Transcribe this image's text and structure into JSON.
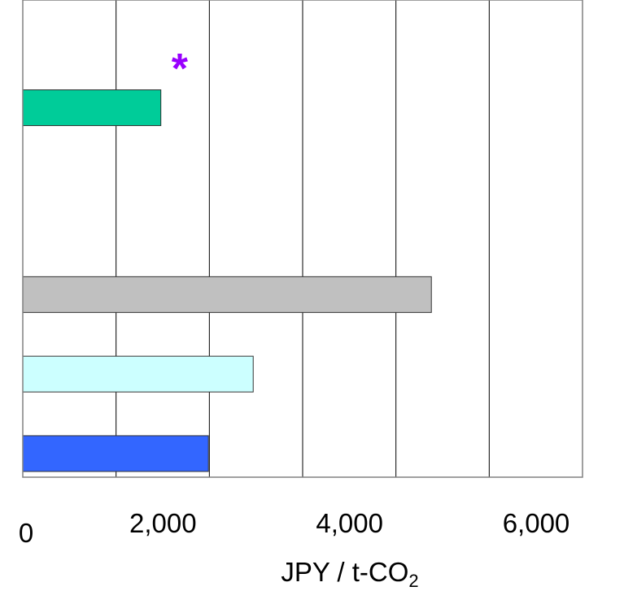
{
  "chart_data": {
    "type": "bar",
    "orientation": "horizontal",
    "xlim": [
      0,
      6000
    ],
    "grid": true,
    "xlabel": "JPY / t-CO",
    "xlabel_subscript": "2",
    "tick_labels": [
      "0",
      "2,000",
      "4,000",
      "6,000"
    ],
    "ticks": [
      0,
      2000,
      4000,
      6000
    ],
    "bars": [
      {
        "slot": 0.85,
        "value": 1480,
        "color": "#00cc99"
      },
      {
        "slot": 3.2,
        "value": 4380,
        "color": "#c0c0c0"
      },
      {
        "slot": 4.2,
        "value": 2470,
        "color": "#ccffff"
      },
      {
        "slot": 5.2,
        "value": 1990,
        "color": "#3366ff"
      }
    ],
    "annotation": {
      "text": "*",
      "color": "#9900ff",
      "x": 1700,
      "slot": 0
    }
  }
}
